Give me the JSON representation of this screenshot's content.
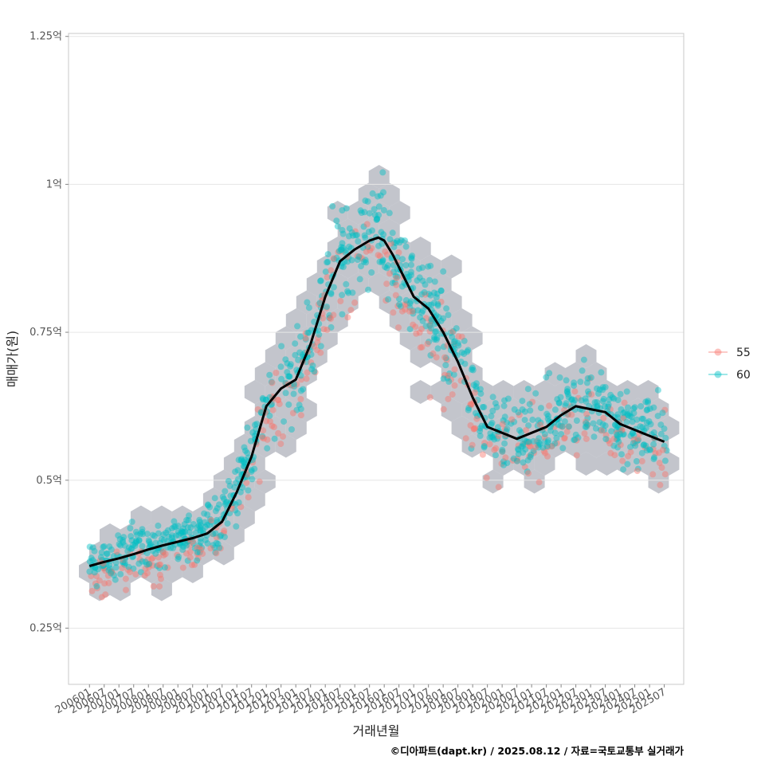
{
  "chart_data": {
    "type": "scatter",
    "title": "",
    "xlabel": "거래년월",
    "ylabel": "매매가(원)",
    "caption": "©디아파트(dapt.kr) / 2025.08.12 / 자료=국토교통부 실거래가",
    "x_ticks": [
      "200601",
      "200607",
      "200701",
      "200707",
      "200801",
      "200807",
      "200901",
      "200907",
      "201001",
      "201007",
      "201101",
      "201107",
      "201201",
      "201207",
      "201301",
      "201307",
      "201401",
      "201407",
      "201501",
      "201507",
      "201601",
      "201607",
      "201701",
      "201707",
      "201801",
      "201807",
      "201901",
      "201907",
      "202001",
      "202007",
      "202101",
      "202107",
      "202201",
      "202207",
      "202301",
      "202307",
      "202401",
      "202407",
      "202501",
      "202507"
    ],
    "y_ticks": [
      {
        "value": 0.25,
        "label": "0.25억"
      },
      {
        "value": 0.5,
        "label": "0.5억"
      },
      {
        "value": 0.75,
        "label": "0.75억"
      },
      {
        "value": 1.0,
        "label": "1억"
      },
      {
        "value": 1.25,
        "label": "1.25억"
      }
    ],
    "ylim": [
      0.155,
      1.255
    ],
    "xlim": [
      2005.29,
      2026.16
    ],
    "grid": true,
    "legend_position": "right",
    "series": [
      {
        "name": "55",
        "color": "#F8766D"
      },
      {
        "name": "60",
        "color": "#00BFC4"
      }
    ],
    "hexbin_color": "#a9adb6",
    "smooth_line": {
      "color": "#000000",
      "x": [
        2006.0,
        2006.5,
        2007.0,
        2007.5,
        2008.0,
        2008.5,
        2009.0,
        2009.5,
        2010.0,
        2010.5,
        2011.0,
        2011.5,
        2012.0,
        2012.5,
        2013.0,
        2013.5,
        2014.0,
        2014.5,
        2015.0,
        2015.5,
        2015.8,
        2016.0,
        2016.3,
        2016.6,
        2017.0,
        2017.5,
        2018.0,
        2018.5,
        2019.0,
        2019.5,
        2020.0,
        2020.5,
        2021.0,
        2021.5,
        2022.0,
        2022.5,
        2023.0,
        2023.5,
        2024.0,
        2024.5,
        2025.0,
        2025.5
      ],
      "y": [
        0.355,
        0.362,
        0.368,
        0.375,
        0.383,
        0.39,
        0.396,
        0.402,
        0.41,
        0.43,
        0.48,
        0.54,
        0.625,
        0.655,
        0.67,
        0.73,
        0.81,
        0.87,
        0.89,
        0.905,
        0.91,
        0.905,
        0.88,
        0.85,
        0.81,
        0.79,
        0.75,
        0.7,
        0.64,
        0.59,
        0.58,
        0.57,
        0.58,
        0.59,
        0.61,
        0.625,
        0.62,
        0.615,
        0.595,
        0.585,
        0.575,
        0.565
      ]
    }
  }
}
